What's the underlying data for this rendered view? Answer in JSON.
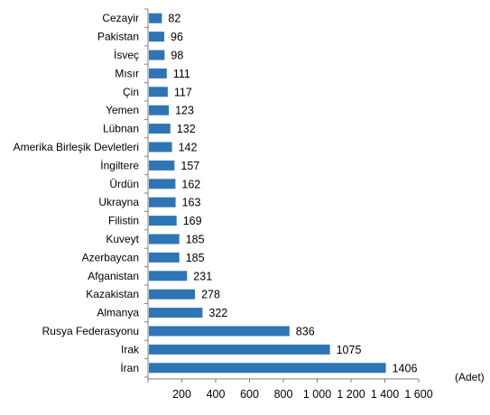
{
  "chart_data": {
    "type": "bar",
    "orientation": "horizontal",
    "title": "",
    "xlabel": "",
    "ylabel": "",
    "unit_label": "(Adet)",
    "xlim": [
      0,
      1600
    ],
    "xticks": [
      200,
      400,
      600,
      800,
      1000,
      1200,
      1400,
      1600
    ],
    "xtick_labels": [
      "200",
      "400",
      "600",
      "800",
      "1 000",
      "1 200",
      "1 400",
      "1 600"
    ],
    "grid": false,
    "bar_color": "#2E75B6",
    "categories": [
      "Cezayir",
      "Pakistan",
      "İsveç",
      "Mısır",
      "Çin",
      "Yemen",
      "Lübnan",
      "Amerika Birleşik Devletleri",
      "İngiltere",
      "Ürdün",
      "Ukrayna",
      "Filistin",
      "Kuveyt",
      "Azerbaycan",
      "Afganistan",
      "Kazakistan",
      "Almanya",
      "Rusya Federasyonu",
      "Irak",
      "İran"
    ],
    "values": [
      82,
      96,
      98,
      111,
      117,
      123,
      132,
      142,
      157,
      162,
      163,
      169,
      185,
      185,
      231,
      278,
      322,
      836,
      1075,
      1406
    ]
  }
}
